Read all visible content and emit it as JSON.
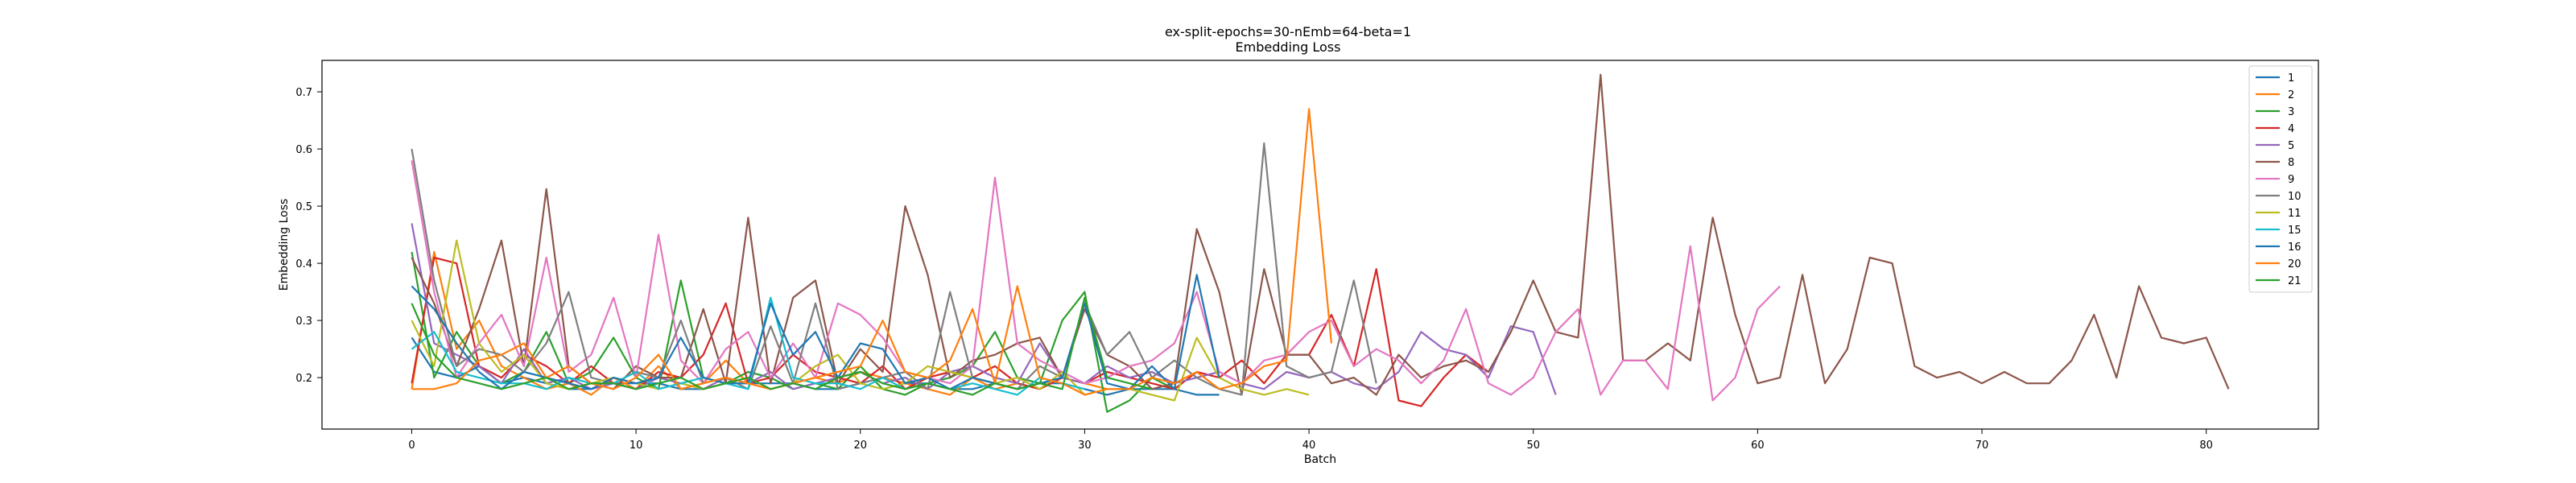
{
  "chart_data": {
    "type": "line",
    "title": "ex-split-epochs=30-nEmb=64-beta=1",
    "subtitle": "Embedding Loss",
    "xlabel": "Batch",
    "ylabel": "Embedding Loss",
    "xlim": [
      -4,
      85
    ],
    "ylim": [
      0.11,
      0.755
    ],
    "xticks": [
      0,
      10,
      20,
      30,
      40,
      50,
      60,
      70,
      80
    ],
    "yticks": [
      0.2,
      0.3,
      0.4,
      0.5,
      0.6,
      0.7
    ],
    "grid": false,
    "legend_position": "top-right",
    "series": [
      {
        "name": "1",
        "color": "#1f77b4",
        "values": [
          0.27,
          0.21,
          0.2,
          0.22,
          0.19,
          0.2,
          0.19,
          0.18,
          0.18,
          0.19,
          0.19,
          0.19,
          0.18,
          0.18,
          0.19,
          0.19,
          0.19,
          0.19,
          0.18,
          0.18,
          0.19,
          0.2,
          0.19,
          0.19,
          0.18,
          0.18,
          0.19,
          0.18,
          0.19,
          0.19,
          0.18,
          0.17,
          0.18,
          0.18,
          0.18,
          0.17,
          0.17
        ]
      },
      {
        "name": "2",
        "color": "#ff7f0e",
        "values": [
          0.18,
          0.42,
          0.25,
          0.3,
          0.22,
          0.2,
          0.18,
          0.19,
          0.17,
          0.2,
          0.18,
          0.22,
          0.18,
          0.19,
          0.23,
          0.19,
          0.18,
          0.19,
          0.2,
          0.19,
          0.21,
          0.2,
          0.19,
          0.18,
          0.17,
          0.2,
          0.18,
          0.19,
          0.18,
          0.2,
          0.19,
          0.18
        ]
      },
      {
        "name": "3",
        "color": "#2ca02c",
        "values": [
          0.42,
          0.2,
          0.28,
          0.22,
          0.19,
          0.21,
          0.28,
          0.19,
          0.21,
          0.27,
          0.2,
          0.18,
          0.37,
          0.2,
          0.19,
          0.21,
          0.2,
          0.18,
          0.19,
          0.18,
          0.22,
          0.18,
          0.17,
          0.19,
          0.2,
          0.22,
          0.28,
          0.2,
          0.19,
          0.3,
          0.35,
          0.14,
          0.16,
          0.2,
          0.18
        ]
      },
      {
        "name": "4",
        "color": "#d62728",
        "values": [
          0.19,
          0.41,
          0.4,
          0.22,
          0.2,
          0.24,
          0.22,
          0.19,
          0.22,
          0.19,
          0.18,
          0.21,
          0.2,
          0.24,
          0.33,
          0.19,
          0.2,
          0.24,
          0.21,
          0.2,
          0.19,
          0.22,
          0.18,
          0.2,
          0.21,
          0.2,
          0.22,
          0.19,
          0.18,
          0.2,
          0.19,
          0.21,
          0.2,
          0.19,
          0.18,
          0.21,
          0.2,
          0.23,
          0.19,
          0.24,
          0.24,
          0.31,
          0.22,
          0.39,
          0.16,
          0.15,
          0.2,
          0.24,
          0.21
        ]
      },
      {
        "name": "5",
        "color": "#9467bd",
        "values": [
          0.47,
          0.26,
          0.24,
          0.22,
          0.19,
          0.25,
          0.19,
          0.2,
          0.18,
          0.19,
          0.18,
          0.2,
          0.19,
          0.18,
          0.2,
          0.19,
          0.21,
          0.18,
          0.19,
          0.2,
          0.21,
          0.19,
          0.2,
          0.18,
          0.21,
          0.22,
          0.2,
          0.19,
          0.26,
          0.2,
          0.19,
          0.22,
          0.2,
          0.21,
          0.19,
          0.2,
          0.21,
          0.19,
          0.18,
          0.21,
          0.2,
          0.21,
          0.19,
          0.18,
          0.21,
          0.28,
          0.25,
          0.24,
          0.2,
          0.29,
          0.28,
          0.17
        ]
      },
      {
        "name": "8",
        "color": "#8c564b",
        "values": [
          0.41,
          0.33,
          0.22,
          0.32,
          0.44,
          0.22,
          0.53,
          0.22,
          0.19,
          0.18,
          0.22,
          0.2,
          0.2,
          0.32,
          0.19,
          0.48,
          0.19,
          0.34,
          0.37,
          0.19,
          0.25,
          0.21,
          0.5,
          0.38,
          0.2,
          0.23,
          0.24,
          0.26,
          0.27,
          0.2,
          0.32,
          0.24,
          0.22,
          0.18,
          0.19,
          0.46,
          0.35,
          0.17,
          0.39,
          0.24,
          0.24,
          0.19,
          0.2,
          0.17,
          0.24,
          0.2,
          0.22,
          0.23,
          0.21,
          0.28,
          0.37,
          0.28,
          0.27,
          0.73,
          0.23,
          0.23,
          0.26,
          0.23,
          0.48,
          0.31,
          0.19,
          0.2,
          0.38,
          0.19,
          0.25,
          0.41,
          0.4,
          0.22,
          0.2,
          0.21,
          0.19,
          0.21,
          0.19,
          0.19,
          0.23,
          0.31,
          0.2,
          0.36,
          0.27,
          0.26,
          0.27,
          0.18
        ]
      },
      {
        "name": "9",
        "color": "#e377c2",
        "values": [
          0.58,
          0.35,
          0.2,
          0.26,
          0.31,
          0.22,
          0.41,
          0.21,
          0.24,
          0.34,
          0.2,
          0.45,
          0.23,
          0.19,
          0.25,
          0.28,
          0.2,
          0.26,
          0.2,
          0.33,
          0.31,
          0.27,
          0.21,
          0.2,
          0.19,
          0.22,
          0.55,
          0.26,
          0.23,
          0.21,
          0.19,
          0.2,
          0.22,
          0.23,
          0.26,
          0.35,
          0.21,
          0.19,
          0.23,
          0.24,
          0.28,
          0.3,
          0.22,
          0.25,
          0.23,
          0.19,
          0.23,
          0.32,
          0.19,
          0.17,
          0.2,
          0.28,
          0.32,
          0.17,
          0.23,
          0.23,
          0.18,
          0.43,
          0.16,
          0.2,
          0.32,
          0.36
        ]
      },
      {
        "name": "10",
        "color": "#7f7f7f",
        "values": [
          0.6,
          0.37,
          0.22,
          0.25,
          0.24,
          0.21,
          0.26,
          0.35,
          0.2,
          0.19,
          0.21,
          0.2,
          0.3,
          0.19,
          0.2,
          0.18,
          0.29,
          0.19,
          0.33,
          0.18,
          0.19,
          0.2,
          0.21,
          0.18,
          0.35,
          0.2,
          0.19,
          0.18,
          0.22,
          0.2,
          0.33,
          0.24,
          0.28,
          0.2,
          0.23,
          0.2,
          0.18,
          0.17,
          0.61,
          0.22,
          0.2,
          0.21,
          0.37,
          0.19
        ]
      },
      {
        "name": "11",
        "color": "#bcbd22",
        "values": [
          0.3,
          0.22,
          0.44,
          0.26,
          0.21,
          0.24,
          0.19,
          0.18,
          0.19,
          0.2,
          0.19,
          0.18,
          0.19,
          0.18,
          0.19,
          0.2,
          0.18,
          0.19,
          0.22,
          0.24,
          0.19,
          0.18,
          0.19,
          0.22,
          0.21,
          0.2,
          0.19,
          0.2,
          0.18,
          0.21,
          0.17,
          0.18,
          0.18,
          0.17,
          0.16,
          0.27,
          0.2,
          0.18,
          0.17,
          0.18,
          0.17
        ]
      },
      {
        "name": "15",
        "color": "#17becf",
        "values": [
          0.25,
          0.28,
          0.21,
          0.2,
          0.19,
          0.19,
          0.18,
          0.2,
          0.19,
          0.19,
          0.21,
          0.18,
          0.19,
          0.2,
          0.19,
          0.18,
          0.34,
          0.2,
          0.19,
          0.19,
          0.18,
          0.2,
          0.18,
          0.19,
          0.18,
          0.19,
          0.18,
          0.17,
          0.2,
          0.19,
          0.18
        ]
      },
      {
        "name": "16",
        "color": "#1f77b4",
        "values": [
          0.36,
          0.32,
          0.26,
          0.21,
          0.18,
          0.21,
          0.2,
          0.19,
          0.18,
          0.2,
          0.19,
          0.2,
          0.27,
          0.2,
          0.19,
          0.19,
          0.33,
          0.24,
          0.28,
          0.2,
          0.26,
          0.25,
          0.19,
          0.2,
          0.18,
          0.2,
          0.19,
          0.18,
          0.19,
          0.2,
          0.33,
          0.19,
          0.18,
          0.22,
          0.18,
          0.38,
          0.2
        ]
      },
      {
        "name": "20",
        "color": "#ff7f0e",
        "values": [
          0.18,
          0.18,
          0.19,
          0.23,
          0.24,
          0.26,
          0.2,
          0.22,
          0.19,
          0.18,
          0.2,
          0.24,
          0.18,
          0.19,
          0.2,
          0.19,
          0.18,
          0.19,
          0.2,
          0.21,
          0.22,
          0.3,
          0.21,
          0.2,
          0.23,
          0.32,
          0.19,
          0.36,
          0.2,
          0.19,
          0.17,
          0.18,
          0.18,
          0.2,
          0.19,
          0.21,
          0.18,
          0.19,
          0.22,
          0.23,
          0.67,
          0.26
        ]
      },
      {
        "name": "21",
        "color": "#2ca02c",
        "values": [
          0.33,
          0.24,
          0.2,
          0.19,
          0.18,
          0.19,
          0.2,
          0.18,
          0.19,
          0.19,
          0.18,
          0.19,
          0.2,
          0.18,
          0.19,
          0.2,
          0.18,
          0.19,
          0.18,
          0.2,
          0.21,
          0.19,
          0.18,
          0.19,
          0.18,
          0.17,
          0.19,
          0.18,
          0.19,
          0.18,
          0.34,
          0.2,
          0.19,
          0.18
        ]
      }
    ]
  }
}
